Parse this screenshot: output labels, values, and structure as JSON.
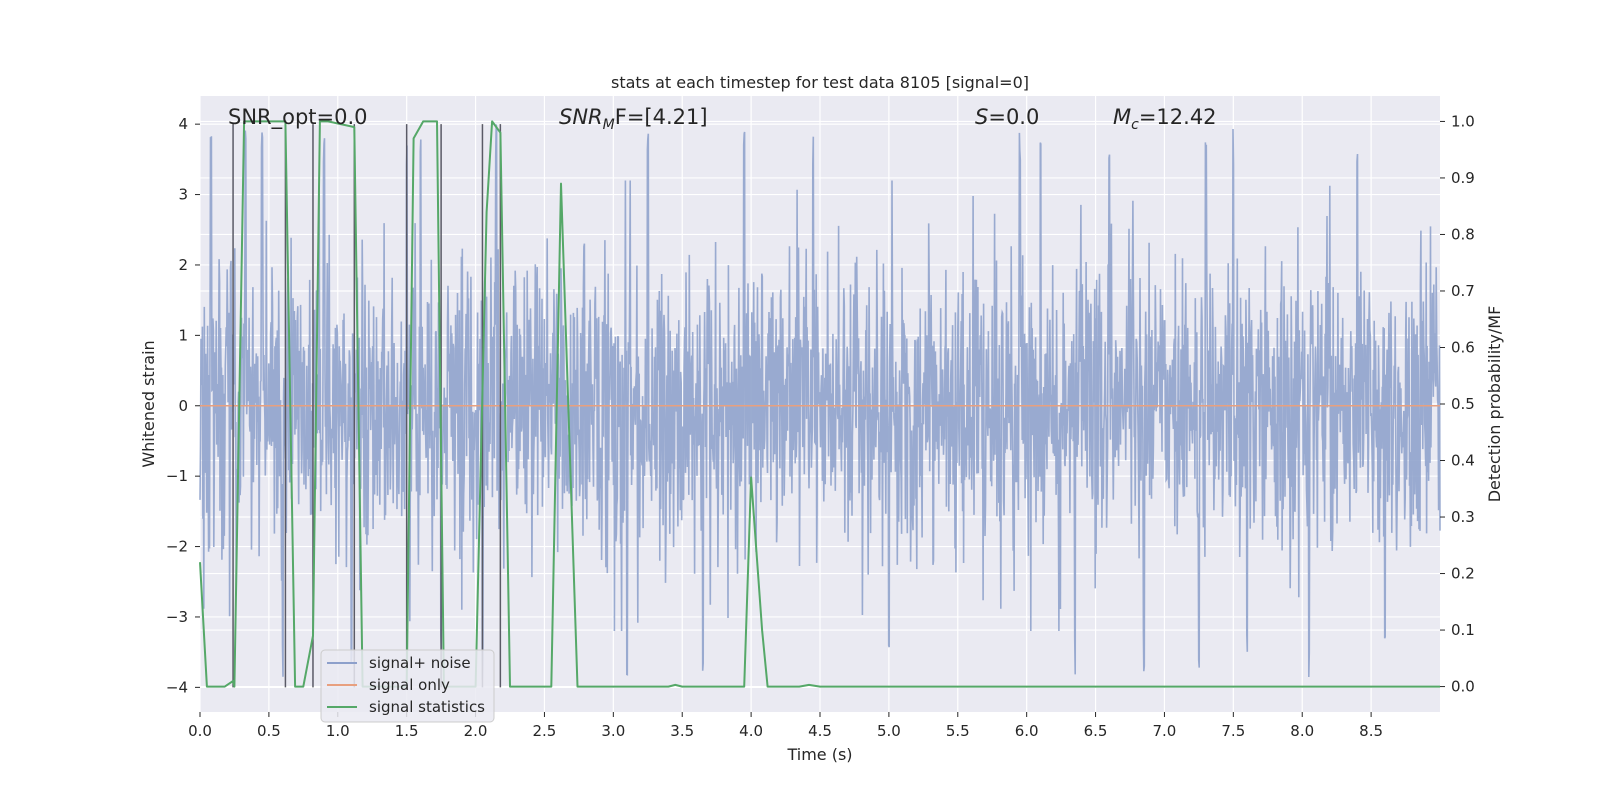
{
  "chart_data": {
    "type": "line",
    "title": "stats at each timestep for test data 8105 [signal=0]",
    "xlabel": "Time (s)",
    "ylabel": "Whitened strain",
    "y2label": "Detection probability/MF",
    "xlim": [
      0.0,
      9.0
    ],
    "ylim": [
      -4.35,
      4.4
    ],
    "y2lim": [
      -0.045,
      1.045
    ],
    "xticks": [
      "0.0",
      "0.5",
      "1.0",
      "1.5",
      "2.0",
      "2.5",
      "3.0",
      "3.5",
      "4.0",
      "4.5",
      "5.0",
      "5.5",
      "6.0",
      "6.5",
      "7.0",
      "7.5",
      "8.0",
      "8.5"
    ],
    "yticks": [
      "4",
      "3",
      "2",
      "1",
      "0",
      "−1",
      "−2",
      "−3",
      "−4"
    ],
    "y2ticks": [
      "1.0",
      "0.9",
      "0.8",
      "0.7",
      "0.6",
      "0.5",
      "0.4",
      "0.3",
      "0.2",
      "0.1",
      "0.0"
    ],
    "grid": true,
    "legend_position": "lower-left",
    "annotations": {
      "snr_opt": "SNR_opt=0.0",
      "snr_mf_main": "SNR",
      "snr_mf_sub": "M",
      "snr_mf_rest": "F=[4.21]",
      "s_var": "S",
      "s_rest": "=0.0",
      "mc_var": "M",
      "mc_sub": "c",
      "mc_rest": "=12.42"
    },
    "series": [
      {
        "name": "signal+ noise",
        "color": "#8da0cb",
        "description_values": "dense whitened noise, amplitude mostly within ±2.5 with spikes to about ±4",
        "peak_times": [
          0.08,
          0.33,
          0.45,
          0.6,
          0.9,
          1.5,
          1.6,
          2.05,
          2.15,
          3.25,
          3.95,
          4.45,
          5.95,
          6.1,
          6.6,
          7.3,
          7.5,
          8.05,
          8.4
        ],
        "trough_times": [
          0.6,
          1.1,
          1.75,
          2.05,
          3.1,
          3.65,
          5.0,
          6.35,
          6.85,
          7.25,
          7.6,
          8.05,
          8.6
        ]
      },
      {
        "name": "signal only",
        "color": "#e8a07f",
        "x": [
          0.0,
          9.0
        ],
        "y": [
          0.0,
          0.0
        ]
      },
      {
        "name": "signal statistics",
        "color": "#55a868",
        "axis": "right",
        "x": [
          0.0,
          0.05,
          0.18,
          0.24,
          0.25,
          0.32,
          0.38,
          0.62,
          0.69,
          0.75,
          0.82,
          0.87,
          0.93,
          1.12,
          1.18,
          1.5,
          1.55,
          1.62,
          1.72,
          1.77,
          1.83,
          2.0,
          2.08,
          2.12,
          2.18,
          2.25,
          2.38,
          2.55,
          2.62,
          2.74,
          2.82,
          3.4,
          3.45,
          3.5,
          3.95,
          4.0,
          4.08,
          4.12,
          4.35,
          4.42,
          4.5,
          9.0
        ],
        "y": [
          0.22,
          0.0,
          0.0,
          0.01,
          0.0,
          1.0,
          1.0,
          1.0,
          0.0,
          0.0,
          0.09,
          1.0,
          1.0,
          0.99,
          0.0,
          0.0,
          0.97,
          1.0,
          1.0,
          0.0,
          0.0,
          0.0,
          0.84,
          1.0,
          0.98,
          0.0,
          0.0,
          0.0,
          0.89,
          0.0,
          0.0,
          0.0,
          0.003,
          0.0,
          0.0,
          0.37,
          0.1,
          0.0,
          0.0,
          0.003,
          0.0,
          0.0
        ]
      }
    ],
    "event_lines": {
      "color": "#5a5a66",
      "x": [
        0.24,
        0.62,
        0.82,
        1.12,
        1.5,
        1.75,
        2.05,
        2.18
      ]
    }
  }
}
